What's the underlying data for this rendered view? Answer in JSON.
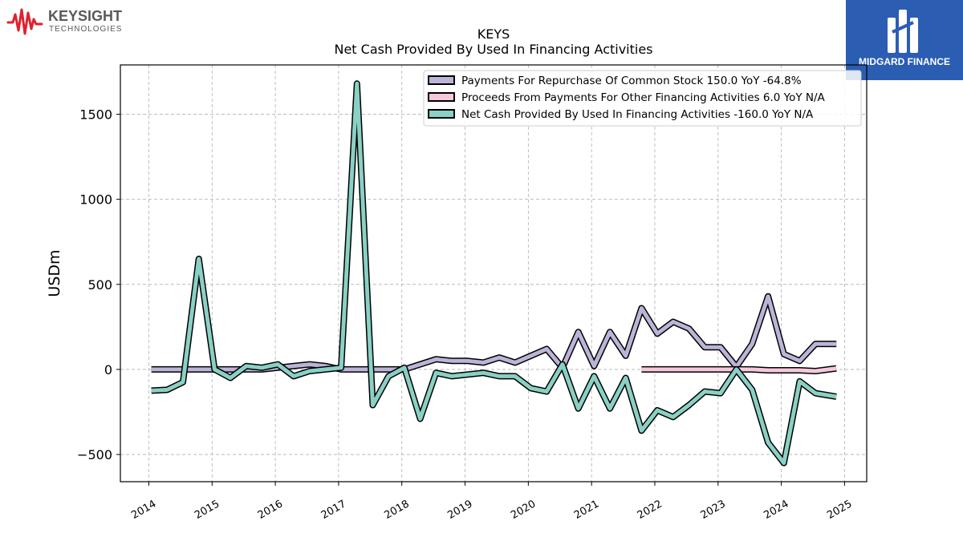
{
  "header": {
    "brand_name": "KEYSIGHT",
    "brand_sub": "TECHNOLOGIES",
    "watermark_name": "MIDGARD FINANCE",
    "ticker": "KEYS",
    "subtitle": "Net Cash Provided By Used In Financing Activities"
  },
  "colors": {
    "repurchase": "#bcb4d8",
    "proceeds": "#f6c8dc",
    "net_cash": "#8ad0c4",
    "outline": "#000000",
    "grid": "#b0b0b0",
    "brand_red": "#e0202f",
    "watermark_bg": "#2b5db3"
  },
  "chart_data": {
    "type": "line",
    "title": "KEYS",
    "subtitle": "Net Cash Provided By Used In Financing Activities",
    "xlabel": "",
    "ylabel": "USDm",
    "xlim": [
      2013.55,
      2025.35
    ],
    "ylim": [
      -660,
      1790
    ],
    "x_ticks": [
      2014,
      2015,
      2016,
      2017,
      2018,
      2019,
      2020,
      2021,
      2022,
      2023,
      2024,
      2025
    ],
    "x_tick_labels": [
      "2014",
      "2015",
      "2016",
      "2017",
      "2018",
      "2019",
      "2020",
      "2021",
      "2022",
      "2023",
      "2024",
      "2025"
    ],
    "y_ticks": [
      -500,
      0,
      500,
      1000,
      1500
    ],
    "y_tick_labels": [
      "−500",
      "0",
      "500",
      "1000",
      "1500"
    ],
    "grid": true,
    "legend_position": "top-right",
    "series": [
      {
        "name": "Payments For Repurchase Of Common Stock",
        "legend_label": "Payments For Repurchase Of Common Stock  150.0 YoY -64.8%",
        "color_key": "repurchase",
        "x": [
          2014.04,
          2014.29,
          2014.54,
          2014.79,
          2015.04,
          2015.29,
          2015.54,
          2015.79,
          2016.04,
          2016.29,
          2016.54,
          2016.79,
          2017.04,
          2017.29,
          2017.54,
          2017.79,
          2018.04,
          2018.29,
          2018.54,
          2018.79,
          2019.04,
          2019.29,
          2019.54,
          2019.79,
          2020.04,
          2020.29,
          2020.54,
          2020.79,
          2021.04,
          2021.29,
          2021.54,
          2021.79,
          2022.04,
          2022.29,
          2022.54,
          2022.79,
          2023.04,
          2023.29,
          2023.54,
          2023.79,
          2024.04,
          2024.29,
          2024.54,
          2024.87
        ],
        "y": [
          0,
          0,
          0,
          0,
          0,
          0,
          0,
          0,
          10,
          20,
          30,
          20,
          0,
          0,
          0,
          0,
          0,
          30,
          60,
          50,
          50,
          40,
          70,
          40,
          80,
          120,
          10,
          220,
          20,
          220,
          80,
          360,
          210,
          280,
          240,
          130,
          130,
          15,
          150,
          430,
          90,
          50,
          150,
          150
        ]
      },
      {
        "name": "Proceeds From Payments For Other Financing Activities",
        "legend_label": "Proceeds From Payments For Other Financing Activities  6.0 YoY N/A",
        "color_key": "proceeds",
        "x": [
          2021.79,
          2022.04,
          2022.29,
          2022.54,
          2022.79,
          2023.04,
          2023.29,
          2023.54,
          2023.79,
          2024.04,
          2024.29,
          2024.54,
          2024.87
        ],
        "y": [
          0,
          0,
          0,
          0,
          0,
          0,
          0,
          0,
          -5,
          -5,
          -5,
          -10,
          6
        ]
      },
      {
        "name": "Net Cash Provided By Used In Financing Activities",
        "legend_label": "Net Cash Provided By Used In Financing Activities  -160.0 YoY N/A",
        "color_key": "net_cash",
        "x": [
          2014.04,
          2014.29,
          2014.54,
          2014.79,
          2015.04,
          2015.29,
          2015.54,
          2015.79,
          2016.04,
          2016.29,
          2016.54,
          2016.79,
          2017.04,
          2017.29,
          2017.54,
          2017.79,
          2018.04,
          2018.29,
          2018.54,
          2018.79,
          2019.04,
          2019.29,
          2019.54,
          2019.79,
          2020.04,
          2020.29,
          2020.54,
          2020.79,
          2021.04,
          2021.29,
          2021.54,
          2021.79,
          2022.04,
          2022.29,
          2022.54,
          2022.79,
          2023.04,
          2023.29,
          2023.54,
          2023.79,
          2024.04,
          2024.29,
          2024.54,
          2024.87
        ],
        "y": [
          -125,
          -120,
          -75,
          650,
          0,
          -50,
          20,
          10,
          30,
          -40,
          -10,
          0,
          10,
          1680,
          -210,
          -40,
          10,
          -290,
          -20,
          -40,
          -30,
          -20,
          -40,
          -40,
          -110,
          -130,
          30,
          -230,
          -40,
          -230,
          -50,
          -360,
          -240,
          -280,
          -210,
          -130,
          -140,
          0,
          -120,
          -430,
          -550,
          -70,
          -140,
          -160
        ]
      }
    ]
  }
}
